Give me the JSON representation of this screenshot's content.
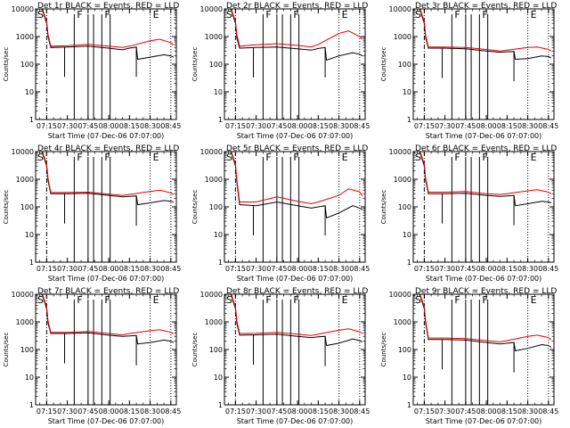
{
  "chart_data": [
    {
      "type": "line",
      "title": "Det 1r BLACK = Events, RED = LLD",
      "xlabel": "Start Time (07-Dec-06 07:07:00)",
      "ylabel": "Counts/sec",
      "yscale": "log",
      "ylim": [
        1,
        10000
      ],
      "xlim": [
        "07:07",
        "08:49"
      ],
      "xticks": [
        "07:15",
        "07:30",
        "07:45",
        "08:00",
        "08:15",
        "08:30",
        "08:45"
      ],
      "yticks": [
        "1",
        "10",
        "100",
        "1000",
        "10000"
      ],
      "annotations": [
        "S",
        "F",
        "F",
        "E"
      ],
      "series": [
        {
          "name": "BLACK",
          "color": "#000000",
          "x": [
            "07:07",
            "07:10",
            "07:12",
            "07:15",
            "07:16",
            "07:18",
            "07:30",
            "07:45",
            "08:00",
            "08:10",
            "08:15",
            "08:20",
            "08:21",
            "08:30",
            "08:40",
            "08:45",
            "08:47"
          ],
          "values": [
            9000,
            12000,
            9000,
            3000,
            1000,
            400,
            420,
            450,
            380,
            330,
            380,
            420,
            150,
            180,
            220,
            200,
            180
          ]
        },
        {
          "name": "RED",
          "color": "#e00000",
          "x": [
            "07:07",
            "07:10",
            "07:12",
            "07:15",
            "07:16",
            "07:18",
            "07:30",
            "07:45",
            "08:00",
            "08:10",
            "08:15",
            "08:30",
            "08:37",
            "08:45",
            "08:47"
          ],
          "values": [
            10000,
            13000,
            10000,
            3500,
            1200,
            450,
            470,
            520,
            450,
            400,
            450,
            700,
            800,
            600,
            500
          ]
        }
      ]
    },
    {
      "type": "line",
      "title": "Det 2r BLACK = Events, RED = LLD",
      "xlabel": "Start Time (07-Dec-06 07:07:00)",
      "ylabel": "Counts/sec",
      "yscale": "log",
      "ylim": [
        1,
        10000
      ],
      "xlim": [
        "07:07",
        "08:49"
      ],
      "xticks": [
        "07:15",
        "07:30",
        "07:45",
        "08:00",
        "08:15",
        "08:30",
        "08:45"
      ],
      "yticks": [
        "1",
        "10",
        "100",
        "1000",
        "10000"
      ],
      "annotations": [
        "S",
        "F",
        "F",
        "E"
      ],
      "series": [
        {
          "name": "BLACK",
          "color": "#000000",
          "x": [
            "07:07",
            "07:10",
            "07:12",
            "07:15",
            "07:16",
            "07:18",
            "07:30",
            "07:45",
            "08:00",
            "08:10",
            "08:15",
            "08:20",
            "08:21",
            "08:30",
            "08:40",
            "08:45",
            "08:47"
          ],
          "values": [
            9000,
            12000,
            9000,
            3000,
            900,
            380,
            400,
            420,
            360,
            320,
            370,
            400,
            140,
            200,
            260,
            230,
            200
          ]
        },
        {
          "name": "RED",
          "color": "#e00000",
          "x": [
            "07:07",
            "07:10",
            "07:12",
            "07:15",
            "07:16",
            "07:18",
            "07:30",
            "07:45",
            "08:00",
            "08:10",
            "08:15",
            "08:30",
            "08:37",
            "08:45",
            "08:47"
          ],
          "values": [
            10000,
            13000,
            10000,
            3500,
            1200,
            450,
            500,
            550,
            480,
            420,
            520,
            1300,
            1600,
            1000,
            800
          ]
        }
      ]
    },
    {
      "type": "line",
      "title": "Det 3r BLACK = Events, RED = LLD",
      "xlabel": "Start Time (07-Dec-06 07:07:00)",
      "ylabel": "Counts/sec",
      "yscale": "log",
      "ylim": [
        1,
        10000
      ],
      "xlim": [
        "07:07",
        "08:49"
      ],
      "xticks": [
        "07:15",
        "07:30",
        "07:45",
        "08:00",
        "08:15",
        "08:30",
        "08:45"
      ],
      "yticks": [
        "1",
        "10",
        "100",
        "1000",
        "10000"
      ],
      "annotations": [
        "S",
        "F",
        "F",
        "E"
      ],
      "series": [
        {
          "name": "BLACK",
          "color": "#000000",
          "x": [
            "07:07",
            "07:10",
            "07:12",
            "07:15",
            "07:16",
            "07:18",
            "07:30",
            "07:45",
            "08:00",
            "08:10",
            "08:15",
            "08:20",
            "08:21",
            "08:30",
            "08:40",
            "08:45",
            "08:47"
          ],
          "values": [
            9000,
            12000,
            9000,
            3000,
            900,
            380,
            380,
            360,
            300,
            270,
            280,
            290,
            150,
            160,
            200,
            190,
            170
          ]
        },
        {
          "name": "RED",
          "color": "#e00000",
          "x": [
            "07:07",
            "07:10",
            "07:12",
            "07:15",
            "07:16",
            "07:18",
            "07:30",
            "07:45",
            "08:00",
            "08:10",
            "08:15",
            "08:30",
            "08:37",
            "08:45",
            "08:47"
          ],
          "values": [
            10000,
            13000,
            10000,
            3500,
            1100,
            420,
            420,
            400,
            340,
            300,
            320,
            400,
            420,
            340,
            300
          ]
        }
      ]
    },
    {
      "type": "line",
      "title": "Det 4r BLACK = Events, RED = LLD",
      "xlabel": "Start Time (07-Dec-06 07:07:00)",
      "ylabel": "Counts/sec",
      "yscale": "log",
      "ylim": [
        1,
        10000
      ],
      "xlim": [
        "07:07",
        "08:49"
      ],
      "xticks": [
        "07:15",
        "07:30",
        "07:45",
        "08:00",
        "08:15",
        "08:30",
        "08:45"
      ],
      "yticks": [
        "1",
        "10",
        "100",
        "1000",
        "10000"
      ],
      "annotations": [
        "S",
        "F",
        "F",
        "E"
      ],
      "series": [
        {
          "name": "BLACK",
          "color": "#000000",
          "x": [
            "07:07",
            "07:10",
            "07:12",
            "07:15",
            "07:16",
            "07:18",
            "07:30",
            "07:45",
            "08:00",
            "08:10",
            "08:15",
            "08:20",
            "08:21",
            "08:30",
            "08:40",
            "08:45",
            "08:47"
          ],
          "values": [
            9000,
            12000,
            9000,
            3000,
            900,
            300,
            300,
            310,
            260,
            230,
            240,
            250,
            120,
            140,
            170,
            160,
            150
          ]
        },
        {
          "name": "RED",
          "color": "#e00000",
          "x": [
            "07:07",
            "07:10",
            "07:12",
            "07:15",
            "07:16",
            "07:18",
            "07:30",
            "07:45",
            "08:00",
            "08:10",
            "08:15",
            "08:30",
            "08:37",
            "08:45",
            "08:47"
          ],
          "values": [
            10000,
            13000,
            10000,
            3500,
            1100,
            330,
            330,
            340,
            290,
            260,
            280,
            360,
            400,
            320,
            280
          ]
        }
      ]
    },
    {
      "type": "line",
      "title": "Det 5r BLACK = Events, RED = LLD",
      "xlabel": "Start Time (07-Dec-06 07:07:00)",
      "ylabel": "Counts/sec",
      "yscale": "log",
      "ylim": [
        1,
        10000
      ],
      "xlim": [
        "07:07",
        "08:49"
      ],
      "xticks": [
        "07:15",
        "07:30",
        "07:45",
        "08:00",
        "08:15",
        "08:30",
        "08:45"
      ],
      "yticks": [
        "1",
        "10",
        "100",
        "1000",
        "10000"
      ],
      "annotations": [
        "S",
        "F",
        "F",
        "E"
      ],
      "series": [
        {
          "name": "BLACK",
          "color": "#000000",
          "x": [
            "07:07",
            "07:10",
            "07:12",
            "07:15",
            "07:16",
            "07:18",
            "07:30",
            "07:45",
            "08:00",
            "08:10",
            "08:15",
            "08:20",
            "08:21",
            "08:30",
            "08:40",
            "08:45",
            "08:47"
          ],
          "values": [
            9000,
            12000,
            9000,
            3000,
            800,
            120,
            110,
            150,
            110,
            90,
            100,
            110,
            40,
            60,
            110,
            90,
            80
          ]
        },
        {
          "name": "RED",
          "color": "#e00000",
          "x": [
            "07:07",
            "07:10",
            "07:12",
            "07:15",
            "07:16",
            "07:18",
            "07:30",
            "07:45",
            "08:00",
            "08:10",
            "08:15",
            "08:30",
            "08:37",
            "08:45",
            "08:47"
          ],
          "values": [
            10000,
            13000,
            10000,
            3500,
            1000,
            150,
            150,
            230,
            160,
            130,
            150,
            260,
            450,
            350,
            250
          ]
        }
      ]
    },
    {
      "type": "line",
      "title": "Det 6r BLACK = Events, RED = LLD",
      "xlabel": "Start Time (07-Dec-06 07:07:00)",
      "ylabel": "Counts/sec",
      "yscale": "log",
      "ylim": [
        1,
        10000
      ],
      "xlim": [
        "07:07",
        "08:49"
      ],
      "xticks": [
        "07:15",
        "07:30",
        "07:45",
        "08:00",
        "08:15",
        "08:30",
        "08:45"
      ],
      "yticks": [
        "1",
        "10",
        "100",
        "1000",
        "10000"
      ],
      "annotations": [
        "S",
        "F",
        "F",
        "E"
      ],
      "series": [
        {
          "name": "BLACK",
          "color": "#000000",
          "x": [
            "07:07",
            "07:10",
            "07:12",
            "07:15",
            "07:16",
            "07:18",
            "07:30",
            "07:45",
            "08:00",
            "08:10",
            "08:15",
            "08:20",
            "08:21",
            "08:30",
            "08:40",
            "08:45",
            "08:47"
          ],
          "values": [
            9000,
            12000,
            9000,
            3000,
            900,
            300,
            300,
            310,
            260,
            240,
            250,
            260,
            110,
            130,
            160,
            150,
            140
          ]
        },
        {
          "name": "RED",
          "color": "#e00000",
          "x": [
            "07:07",
            "07:10",
            "07:12",
            "07:15",
            "07:16",
            "07:18",
            "07:30",
            "07:45",
            "08:00",
            "08:10",
            "08:15",
            "08:30",
            "08:37",
            "08:45",
            "08:47"
          ],
          "values": [
            10000,
            13000,
            10000,
            3500,
            1100,
            340,
            340,
            360,
            300,
            280,
            300,
            380,
            420,
            340,
            300
          ]
        }
      ]
    },
    {
      "type": "line",
      "title": "Det 7r BLACK = Events, RED = LLD",
      "xlabel": "Start Time (07-Dec-06 07:07:00)",
      "ylabel": "Counts/sec",
      "yscale": "log",
      "ylim": [
        1,
        10000
      ],
      "xlim": [
        "07:07",
        "08:49"
      ],
      "xticks": [
        "07:15",
        "07:30",
        "07:45",
        "08:00",
        "08:15",
        "08:30",
        "08:45"
      ],
      "yticks": [
        "1",
        "10",
        "100",
        "1000",
        "10000"
      ],
      "annotations": [
        "S",
        "F",
        "F",
        "E"
      ],
      "series": [
        {
          "name": "BLACK",
          "color": "#000000",
          "x": [
            "07:07",
            "07:10",
            "07:12",
            "07:15",
            "07:16",
            "07:18",
            "07:30",
            "07:45",
            "08:00",
            "08:10",
            "08:15",
            "08:20",
            "08:21",
            "08:30",
            "08:40",
            "08:45",
            "08:47"
          ],
          "values": [
            9000,
            12000,
            9000,
            3000,
            900,
            380,
            380,
            400,
            330,
            300,
            310,
            320,
            160,
            180,
            220,
            200,
            180
          ]
        },
        {
          "name": "RED",
          "color": "#e00000",
          "x": [
            "07:07",
            "07:10",
            "07:12",
            "07:15",
            "07:16",
            "07:18",
            "07:30",
            "07:45",
            "08:00",
            "08:10",
            "08:15",
            "08:30",
            "08:37",
            "08:45",
            "08:47"
          ],
          "values": [
            10000,
            13000,
            10000,
            3500,
            1100,
            420,
            420,
            450,
            380,
            340,
            380,
            480,
            520,
            420,
            380
          ]
        }
      ]
    },
    {
      "type": "line",
      "title": "Det 8r BLACK = Events, RED = LLD",
      "xlabel": "Start Time (07-Dec-06 07:07:00)",
      "ylabel": "Counts/sec",
      "yscale": "log",
      "ylim": [
        1,
        10000
      ],
      "xlim": [
        "07:07",
        "08:49"
      ],
      "xticks": [
        "07:15",
        "07:30",
        "07:45",
        "08:00",
        "08:15",
        "08:30",
        "08:45"
      ],
      "yticks": [
        "1",
        "10",
        "100",
        "1000",
        "10000"
      ],
      "annotations": [
        "S",
        "F",
        "F",
        "E"
      ],
      "series": [
        {
          "name": "BLACK",
          "color": "#000000",
          "x": [
            "07:07",
            "07:10",
            "07:12",
            "07:15",
            "07:16",
            "07:18",
            "07:30",
            "07:45",
            "08:00",
            "08:10",
            "08:15",
            "08:20",
            "08:21",
            "08:30",
            "08:40",
            "08:45",
            "08:47"
          ],
          "values": [
            9000,
            12000,
            9000,
            3000,
            900,
            330,
            340,
            360,
            300,
            270,
            290,
            300,
            140,
            170,
            240,
            210,
            190
          ]
        },
        {
          "name": "RED",
          "color": "#e00000",
          "x": [
            "07:07",
            "07:10",
            "07:12",
            "07:15",
            "07:16",
            "07:18",
            "07:30",
            "07:45",
            "08:00",
            "08:10",
            "08:15",
            "08:30",
            "08:37",
            "08:45",
            "08:47"
          ],
          "values": [
            10000,
            13000,
            10000,
            3500,
            1100,
            380,
            390,
            420,
            360,
            320,
            360,
            500,
            560,
            440,
            380
          ]
        }
      ]
    },
    {
      "type": "line",
      "title": "Det 9r BLACK = Events, RED = LLD",
      "xlabel": "Start Time (07-Dec-06 07:07:00)",
      "ylabel": "Counts/sec",
      "yscale": "log",
      "ylim": [
        1,
        10000
      ],
      "xlim": [
        "07:07",
        "08:49"
      ],
      "xticks": [
        "07:15",
        "07:30",
        "07:45",
        "08:00",
        "08:15",
        "08:30",
        "08:45"
      ],
      "yticks": [
        "1",
        "10",
        "100",
        "1000",
        "10000"
      ],
      "annotations": [
        "S",
        "F",
        "F",
        "E"
      ],
      "series": [
        {
          "name": "BLACK",
          "color": "#000000",
          "x": [
            "07:07",
            "07:10",
            "07:12",
            "07:15",
            "07:16",
            "07:18",
            "07:30",
            "07:45",
            "08:00",
            "08:10",
            "08:15",
            "08:20",
            "08:21",
            "08:30",
            "08:40",
            "08:45",
            "08:47"
          ],
          "values": [
            9000,
            12000,
            9000,
            3000,
            900,
            230,
            230,
            220,
            180,
            160,
            170,
            180,
            90,
            110,
            150,
            140,
            120
          ]
        },
        {
          "name": "RED",
          "color": "#e00000",
          "x": [
            "07:07",
            "07:10",
            "07:12",
            "07:15",
            "07:16",
            "07:18",
            "07:30",
            "07:45",
            "08:00",
            "08:10",
            "08:15",
            "08:30",
            "08:37",
            "08:45",
            "08:47"
          ],
          "values": [
            10000,
            13000,
            10000,
            3500,
            1100,
            260,
            260,
            250,
            210,
            190,
            210,
            300,
            330,
            270,
            230
          ]
        }
      ]
    }
  ],
  "markers": {
    "dashdot": "07:15",
    "solid": [
      "07:35",
      "07:45",
      "07:49",
      "07:55",
      "08:01"
    ],
    "spike_down": [
      "07:28",
      "08:20"
    ],
    "dotted": [
      "08:30",
      "08:45"
    ]
  }
}
